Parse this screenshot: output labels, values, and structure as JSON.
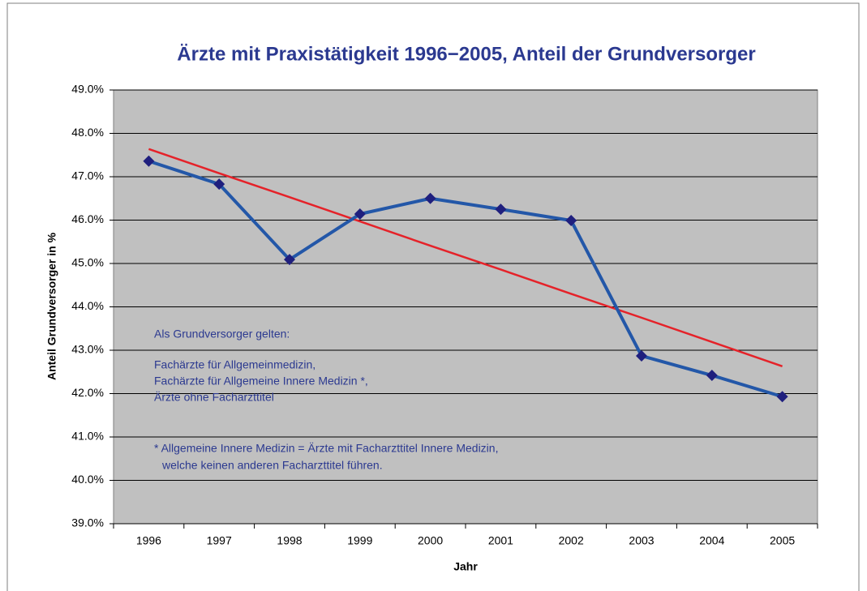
{
  "chart_data": {
    "type": "line",
    "title": "Ärzte mit Praxistätigkeit 1996−2005, Anteil der Grundversorger",
    "x_label": "Jahr",
    "y_label": "Anteil Grundversorger in %",
    "categories": [
      "1996",
      "1997",
      "1998",
      "1999",
      "2000",
      "2001",
      "2002",
      "2003",
      "2004",
      "2005"
    ],
    "series": [
      {
        "color": "#2357a8",
        "marker_color": "#1f1f7e",
        "values": [
          47.36,
          46.83,
          45.09,
          46.14,
          46.5,
          46.25,
          45.99,
          42.87,
          42.42,
          41.93
        ]
      },
      {
        "color": "#e52229",
        "values": [
          47.64,
          47.08,
          46.53,
          45.97,
          45.41,
          44.86,
          44.3,
          43.75,
          43.19,
          42.63
        ]
      }
    ],
    "ylim": [
      39,
      49
    ],
    "yticks": [
      {
        "value": 39,
        "label": "39.0%"
      },
      {
        "value": 40,
        "label": "40.0%"
      },
      {
        "value": 41,
        "label": "41.0%"
      },
      {
        "value": 42,
        "label": "42.0%"
      },
      {
        "value": 43,
        "label": "43.0%"
      },
      {
        "value": 44,
        "label": "44.0%"
      },
      {
        "value": 45,
        "label": "45.0%"
      },
      {
        "value": 46,
        "label": "46.0%"
      },
      {
        "value": 47,
        "label": "47.0%"
      },
      {
        "value": 48,
        "label": "48.0%"
      },
      {
        "value": 49,
        "label": "49.0%"
      }
    ],
    "grid": true,
    "annotations": [
      "Als Grundversorger gelten:",
      "Fachärzte für Allgemeinmedizin,",
      "Fachärzte für Allgemeine Innere Medizin *,",
      "Ärzte ohne Facharzttitel",
      "* Allgemeine Innere Medizin = Ärzte mit Facharzttitel Innere Medizin,",
      "welche keinen anderen Facharzttitel führen."
    ]
  }
}
